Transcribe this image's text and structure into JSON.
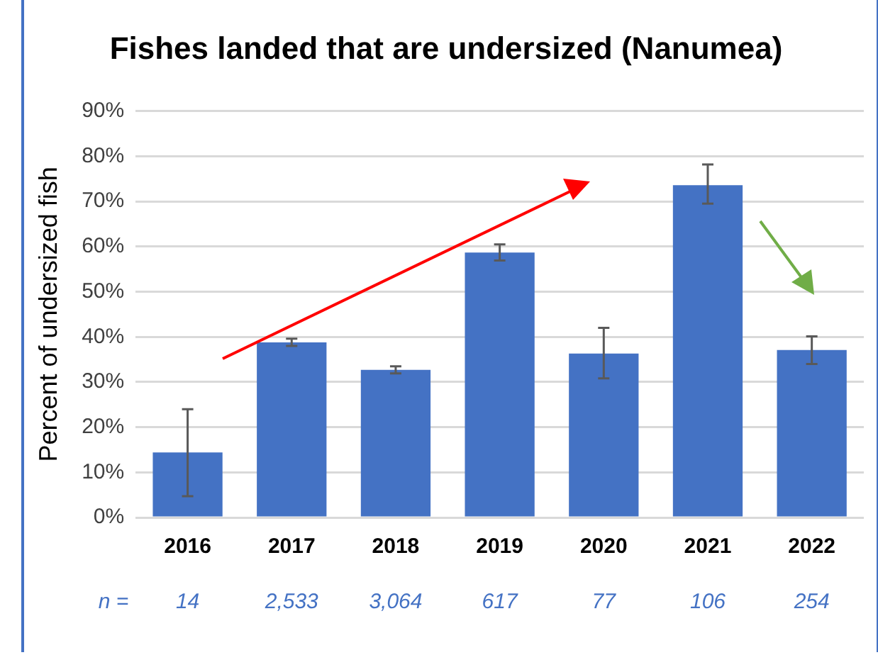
{
  "chart_data": {
    "type": "bar",
    "title": "Fishes landed that are undersized (Nanumea)",
    "ylabel": "Percent of undersized fish",
    "categories": [
      "2016",
      "2017",
      "2018",
      "2019",
      "2020",
      "2021",
      "2022"
    ],
    "values": [
      14.4,
      38.8,
      32.7,
      58.7,
      36.3,
      73.6,
      37.1
    ],
    "errors": [
      [
        4.7,
        24.0
      ],
      [
        38.0,
        39.6
      ],
      [
        31.9,
        33.5
      ],
      [
        56.9,
        60.5
      ],
      [
        30.8,
        42.0
      ],
      [
        69.5,
        78.2
      ],
      [
        34.0,
        40.1
      ]
    ],
    "color": "#4472c4",
    "ylim": [
      0,
      90
    ],
    "yticks": [
      {
        "value": 0,
        "label": "0%"
      },
      {
        "value": 10,
        "label": "10%"
      },
      {
        "value": 20,
        "label": "20%"
      },
      {
        "value": 30,
        "label": "30%"
      },
      {
        "value": 40,
        "label": "40%"
      },
      {
        "value": 50,
        "label": "50%"
      },
      {
        "value": 60,
        "label": "60%"
      },
      {
        "value": 70,
        "label": "70%"
      },
      {
        "value": 80,
        "label": "80%"
      },
      {
        "value": 90,
        "label": "90%"
      }
    ],
    "grid": "y",
    "legend": false,
    "annotations": [
      "n =",
      "14",
      "2,533",
      "3,064",
      "617",
      "77",
      "106",
      "254"
    ]
  }
}
